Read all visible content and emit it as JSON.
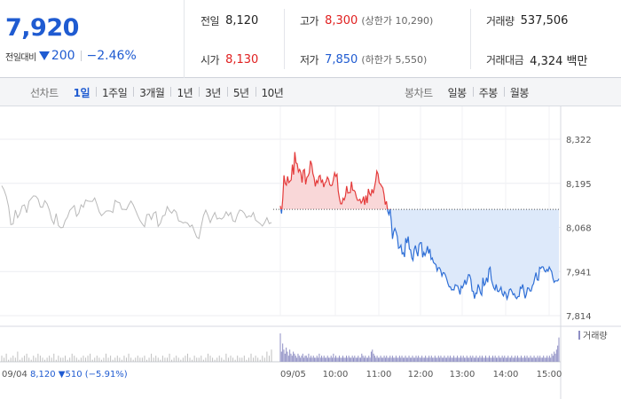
{
  "summary": {
    "price": "7,920",
    "change_label": "전일대비",
    "change_direction_icon": "down-triangle-icon",
    "change_abs": "200",
    "change_pct": "−2.46%",
    "colors": {
      "up": "#e02020",
      "down": "#1f5bd1"
    }
  },
  "stats": {
    "prev_close": {
      "label": "전일",
      "value": "8,120"
    },
    "high": {
      "label": "고가",
      "value": "8,300",
      "sub": "(상한가 10,290)"
    },
    "volume": {
      "label": "거래량",
      "value": "537,506"
    },
    "open": {
      "label": "시가",
      "value": "8,130"
    },
    "low": {
      "label": "저가",
      "value": "7,850",
      "sub": "(하한가 5,550)"
    },
    "amount": {
      "label": "거래대금",
      "value": "4,324 백만"
    }
  },
  "toolbar": {
    "line_label": "선차트",
    "line_periods": [
      "1일",
      "1주일",
      "3개월",
      "1년",
      "3년",
      "5년",
      "10년"
    ],
    "line_active": "1일",
    "candle_label": "봉차트",
    "candle_periods": [
      "일봉",
      "주봉",
      "월봉"
    ]
  },
  "chart_data": {
    "type": "line",
    "y_ticks": [
      "8,322",
      "8,195",
      "8,068",
      "7,941",
      "7,814"
    ],
    "y_values": [
      8322,
      8195,
      8068,
      7941,
      7814
    ],
    "ylim": [
      7814,
      8322
    ],
    "baseline": 8120,
    "x_ticks": [
      "09/05",
      "10:00",
      "11:00",
      "12:00",
      "13:00",
      "14:00",
      "15:00"
    ],
    "prev_day": {
      "date": "09/04",
      "close": "8,120",
      "change": "▼510",
      "pct": "(−5.91%)"
    },
    "volume_legend": "거래량",
    "grid": true,
    "series": [
      {
        "values": [
          8188,
          8176,
          8157,
          8128,
          8076,
          8078,
          8118,
          8096,
          8108,
          8130,
          8133,
          8110,
          8143,
          8151,
          8159,
          8158,
          8150,
          8127,
          8126,
          8145,
          8136,
          8118,
          8091,
          8078,
          8108,
          8073,
          8067,
          8068,
          8088,
          8098,
          8117,
          8124,
          8131,
          8100,
          8109,
          8133,
          8126,
          8147,
          8144,
          8143,
          8143,
          8153,
          8134,
          8113,
          8102,
          8108,
          8115,
          8116,
          8115,
          8111,
          8146,
          8141,
          8139,
          8120,
          8120,
          8119,
          8133,
          8144,
          8133,
          8118,
          8102,
          8088,
          8078,
          8070,
          8105,
          8106,
          8091,
          8109,
          8113,
          8071,
          8080,
          8101,
          8103,
          8128,
          8116,
          8109,
          8119,
          8112,
          8087,
          8085,
          8081,
          8083,
          8080,
          8070,
          8075,
          8057,
          8040,
          8036,
          8071,
          8102,
          8118,
          8102,
          8082,
          8098,
          8111,
          8092,
          8095,
          8092,
          8098,
          8113,
          8102,
          8111,
          8087,
          8084,
          8105,
          8118,
          8116,
          8109,
          8096,
          8101,
          8099,
          8111,
          8089,
          8084,
          8079,
          8072,
          8082,
          8096,
          8079,
          8082
        ],
        "colors": {
          "line": "#b9b9b9"
        }
      },
      {
        "values": [
          8130,
          8108,
          8150,
          8218,
          8195,
          8190,
          8215,
          8197,
          8201,
          8205,
          8249,
          8220,
          8285,
          8254,
          8251,
          8228,
          8235,
          8226,
          8197,
          8232,
          8235,
          8192,
          8212,
          8216,
          8225,
          8260,
          8250,
          8223,
          8211,
          8186,
          8203,
          8196,
          8215,
          8218,
          8198,
          8204,
          8184,
          8196,
          8200,
          8213,
          8207,
          8191,
          8188,
          8190,
          8206,
          8225,
          8215,
          8221,
          8173,
          8152,
          8136,
          8136,
          8152,
          8147,
          8159,
          8187,
          8167,
          8168,
          8168,
          8200,
          8175,
          8175,
          8171,
          8156,
          8146,
          8146,
          8149,
          8138,
          8144,
          8157,
          8133,
          8160,
          8138,
          8179,
          8165,
          8160,
          8178,
          8166,
          8183,
          8201,
          8230,
          8222,
          8196,
          8193,
          8187,
          8182,
          8163,
          8134,
          8143,
          8115,
          8105,
          8121,
          8087,
          8035,
          8056,
          8065,
          8055,
          8042,
          8008,
          8010,
          8017,
          7992,
          7995,
          7983,
          8037,
          8023,
          8042,
          8006,
          8003,
          7980,
          7973,
          8004,
          8016,
          7998,
          7985,
          8018,
          8024,
          8024,
          7982,
          7996,
          7987,
          7997,
          8014,
          7993,
          8006,
          7976,
          7980,
          7967,
          7964,
          7961,
          7943,
          7952,
          7952,
          7944,
          7928,
          7938,
          7937,
          7930,
          7919,
          7906,
          7897,
          7897,
          7888,
          7889,
          7888,
          7903,
          7901,
          7900,
          7889,
          7875,
          7899,
          7894,
          7903,
          7917,
          7903,
          7916,
          7932,
          7931,
          7918,
          7885,
          7884,
          7863,
          7879,
          7878,
          7904,
          7894,
          7879,
          7873,
          7923,
          7901,
          7906,
          7923,
          7910,
          7948,
          7953,
          7918,
          7905,
          7894,
          7888,
          7904,
          7885,
          7883,
          7888,
          7896,
          7877,
          7871,
          7883,
          7877,
          7862,
          7873,
          7889,
          7891,
          7884,
          7874,
          7877,
          7867,
          7863,
          7869,
          7869,
          7896,
          7892,
          7904,
          7883,
          7864,
          7875,
          7894,
          7893,
          7885,
          7885,
          7900,
          7906,
          7923,
          7938,
          7917,
          7916,
          7953,
          7950,
          7955,
          7954,
          7944,
          7940,
          7947,
          7942,
          7954,
          7947,
          7941,
          7922,
          7910,
          7914,
          7914,
          7914,
          7920
        ],
        "colors": {
          "line": "#2f6fd6",
          "up_line": "#e43b3b",
          "up_fill": "#f9d7d8",
          "down_fill": "#dde9fa"
        }
      }
    ],
    "volume": {
      "prev_day": [
        3,
        2,
        4,
        1,
        2,
        3,
        2,
        5,
        1,
        2,
        3,
        4,
        2,
        1,
        3,
        2,
        4,
        3,
        2,
        1,
        2,
        3,
        2,
        4,
        1,
        3,
        2,
        2,
        3,
        1,
        2,
        4,
        3,
        2,
        1,
        2,
        3,
        2,
        3,
        4,
        1,
        2,
        3,
        2,
        1,
        2,
        4,
        2,
        3,
        1,
        2,
        3,
        2,
        1,
        3,
        2,
        4,
        2,
        1,
        2,
        3,
        2,
        2,
        3,
        1,
        2,
        4,
        2,
        3,
        2,
        1,
        3,
        2,
        2,
        4,
        1,
        2,
        3,
        2,
        1,
        2,
        3,
        4,
        2,
        1,
        3,
        2,
        2,
        3,
        1,
        2,
        4,
        3,
        2,
        1,
        2,
        3,
        2,
        1,
        4,
        2,
        3,
        2,
        1,
        3,
        2,
        2,
        3,
        1,
        2,
        4,
        2,
        3,
        2,
        1,
        3,
        2,
        5,
        3,
        6
      ],
      "today": [
        14,
        5,
        9,
        6,
        4,
        7,
        5,
        3,
        6,
        4,
        3,
        5,
        4,
        3,
        2,
        4,
        3,
        2,
        3,
        4,
        2,
        3,
        3,
        2,
        4,
        2,
        3,
        2,
        3,
        2,
        2,
        3,
        2,
        4,
        2,
        3,
        2,
        3,
        2,
        2,
        3,
        2,
        2,
        3,
        2,
        4,
        2,
        3,
        2,
        2,
        3,
        2,
        2,
        3,
        2,
        2,
        3,
        2,
        3,
        2,
        2,
        3,
        2,
        3,
        2,
        2,
        3,
        2,
        2,
        4,
        3,
        2,
        3,
        2,
        2,
        3,
        2,
        5,
        6,
        4,
        3,
        2,
        3,
        2,
        2,
        3,
        2,
        2,
        3,
        2,
        3,
        2,
        2,
        3,
        2,
        3,
        2,
        2,
        3,
        2,
        2,
        3,
        2,
        3,
        2,
        2,
        3,
        2,
        2,
        3,
        2,
        2,
        3,
        2,
        2,
        3,
        2,
        3,
        2,
        2,
        3,
        2,
        2,
        3,
        2,
        2,
        3,
        2,
        3,
        2,
        2,
        3,
        2,
        2,
        3,
        2,
        3,
        2,
        2,
        3,
        2,
        2,
        3,
        2,
        3,
        2,
        2,
        3,
        2,
        2,
        3,
        2,
        2,
        3,
        2,
        3,
        2,
        2,
        3,
        2,
        2,
        3,
        2,
        3,
        2,
        2,
        3,
        2,
        2,
        3,
        2,
        3,
        2,
        2,
        3,
        2,
        2,
        3,
        2,
        2,
        3,
        2,
        3,
        2,
        2,
        3,
        2,
        2,
        3,
        2,
        3,
        2,
        2,
        3,
        2,
        2,
        3,
        2,
        2,
        3,
        2,
        3,
        2,
        2,
        3,
        2,
        2,
        3,
        2,
        3,
        2,
        2,
        3,
        2,
        2,
        3,
        2,
        2,
        3,
        2,
        3,
        2,
        2,
        3,
        2,
        2,
        3,
        2,
        3,
        2,
        4,
        3,
        5,
        4,
        6,
        8,
        12
      ]
    }
  }
}
